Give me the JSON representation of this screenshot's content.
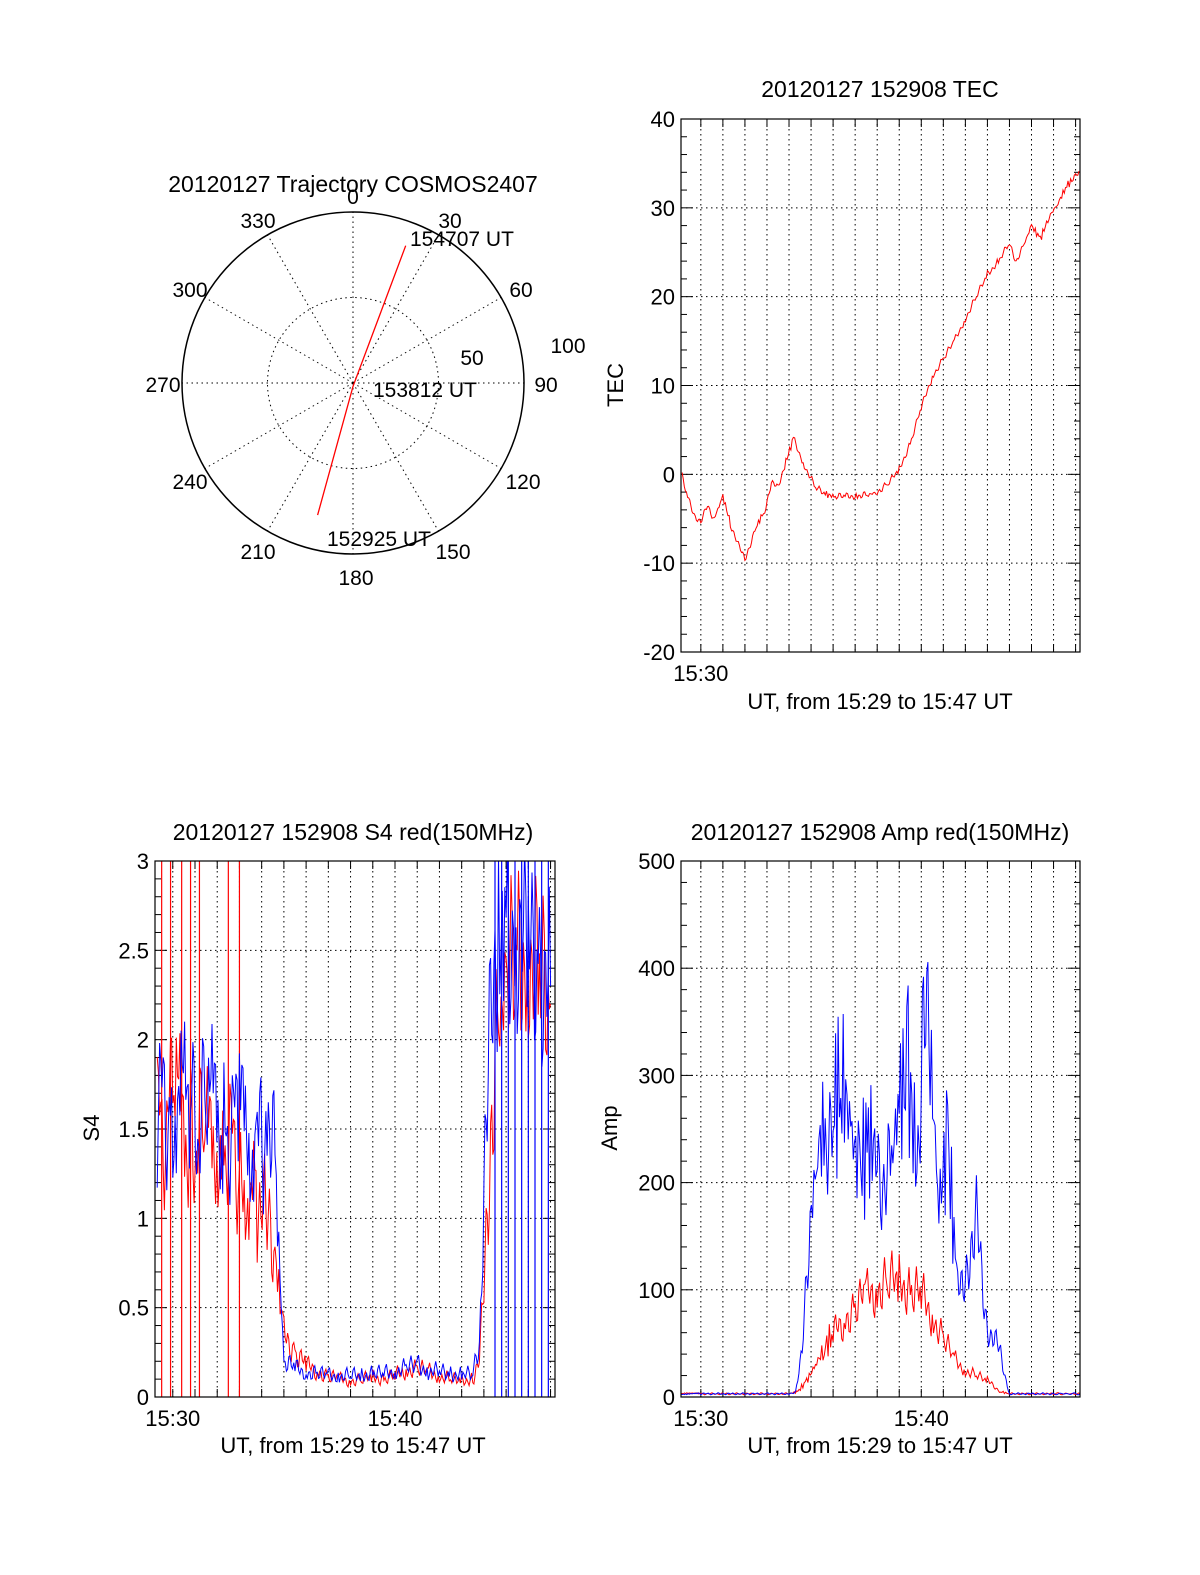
{
  "chart_data": [
    {
      "id": "trajectory",
      "type": "polar",
      "title": "20120127 Trajectory COSMOS2407",
      "angle_labels": [
        "0",
        "30",
        "60",
        "90",
        "120",
        "150",
        "180",
        "210",
        "240",
        "270",
        "300",
        "330"
      ],
      "radius_labels": [
        "50",
        "100"
      ],
      "rmax": 100,
      "grid": true,
      "series": [
        {
          "color": "#ff0000",
          "points": [
            {
              "az": 195,
              "r": 80
            },
            {
              "az": 180,
              "r": 2
            },
            {
              "az": 21,
              "r": 86
            }
          ]
        }
      ],
      "annotations": [
        {
          "text": "154707 UT",
          "az": 21,
          "r": 86
        },
        {
          "text": "153812 UT",
          "az": 180,
          "r": 2
        },
        {
          "text": "152925 UT",
          "az": 195,
          "r": 80
        }
      ]
    },
    {
      "id": "tec",
      "type": "line",
      "title": "20120127 152908 TEC",
      "xlabel": "UT, from 15:29 to 15:47 UT",
      "ylabel": "TEC",
      "x_unit": "minutes after 15:00 UT",
      "xlim": [
        29.1,
        47.2
      ],
      "ylim": [
        -20,
        40
      ],
      "yticks": [
        -20,
        -10,
        0,
        10,
        20,
        30,
        40
      ],
      "xticks": [
        {
          "value": 30,
          "label": "15:30"
        }
      ],
      "grid": true,
      "series": [
        {
          "color": "#ff0000",
          "x": [
            29.15,
            29.4,
            29.7,
            30.0,
            30.3,
            30.6,
            31.0,
            31.4,
            31.7,
            32.0,
            32.3,
            32.5,
            32.9,
            33.2,
            33.5,
            33.8,
            34.2,
            34.7,
            35.2,
            35.7,
            36.1,
            36.6,
            37.1,
            37.6,
            38.0,
            38.5,
            39.0,
            39.5,
            40.0,
            40.5,
            41.0,
            41.5,
            42.0,
            42.5,
            43.0,
            43.5,
            44.0,
            44.3,
            44.6,
            45.0,
            45.4,
            45.8,
            46.2,
            46.6,
            47.0,
            47.2
          ],
          "y": [
            0,
            -2.5,
            -4.5,
            -5.5,
            -3.5,
            -5,
            -2.5,
            -6,
            -8,
            -9.5,
            -7.5,
            -6,
            -4,
            -1,
            -1.5,
            1,
            4,
            1,
            -1.5,
            -2.3,
            -2.5,
            -2.5,
            -2.4,
            -2.3,
            -2,
            -1,
            0.5,
            3.5,
            7.5,
            11,
            13,
            15,
            17.5,
            20,
            22.5,
            24,
            26,
            24,
            25.5,
            28,
            26.5,
            29,
            30.5,
            32.5,
            33.5,
            34
          ]
        }
      ]
    },
    {
      "id": "s4",
      "type": "line",
      "title": "20120127 152908 S4 red(150MHz)",
      "xlabel": "UT, from 15:29 to 15:47 UT",
      "ylabel": "S4",
      "x_unit": "minutes after 15:00 UT",
      "xlim": [
        29.2,
        47.2
      ],
      "ylim": [
        0,
        3
      ],
      "yticks": [
        0,
        0.5,
        1,
        1.5,
        2,
        2.5,
        3
      ],
      "xticks": [
        {
          "value": 30,
          "label": "15:30"
        },
        {
          "value": 40,
          "label": "15:40"
        }
      ],
      "grid": true,
      "series": [
        {
          "color": "#ff0000",
          "x": [
            29.3,
            30.0,
            30.8,
            31.5,
            32.3,
            33.0,
            33.8,
            34.3,
            34.6,
            35.0,
            35.5,
            36.0,
            36.5,
            37.0,
            37.5,
            38.0,
            38.5,
            39.0,
            39.5,
            40.0,
            40.5,
            41.0,
            41.5,
            42.0,
            42.5,
            43.0,
            43.5,
            43.8,
            44.0,
            44.3,
            44.6,
            45.0,
            45.5,
            46.0,
            46.5,
            47.0
          ],
          "y": [
            1.5,
            1.6,
            1.5,
            1.4,
            1.5,
            1.3,
            1.1,
            1.0,
            0.8,
            0.35,
            0.25,
            0.18,
            0.14,
            0.12,
            0.1,
            0.09,
            0.1,
            0.11,
            0.1,
            0.12,
            0.15,
            0.16,
            0.14,
            0.12,
            0.1,
            0.09,
            0.1,
            0.2,
            0.6,
            1.5,
            2.0,
            2.3,
            2.4,
            2.5,
            2.3,
            2.2
          ],
          "spike_x": [
            29.5,
            29.9,
            30.4,
            30.8,
            31.2,
            32.5,
            33.0
          ],
          "spike_top": 3
        },
        {
          "color": "#0000ff",
          "x": [
            29.3,
            30.0,
            30.8,
            31.5,
            32.3,
            33.0,
            33.8,
            34.3,
            34.6,
            35.0,
            35.5,
            36.0,
            36.5,
            37.0,
            37.5,
            38.0,
            38.5,
            39.0,
            39.5,
            40.0,
            40.5,
            41.0,
            41.5,
            42.0,
            42.5,
            43.0,
            43.5,
            43.8,
            44.0,
            44.3,
            44.6,
            45.0,
            45.5,
            46.0,
            46.5,
            47.0
          ],
          "y": [
            1.6,
            1.7,
            1.55,
            1.6,
            1.55,
            1.5,
            1.5,
            1.45,
            1.3,
            0.2,
            0.16,
            0.14,
            0.13,
            0.12,
            0.12,
            0.12,
            0.12,
            0.13,
            0.13,
            0.15,
            0.16,
            0.18,
            0.15,
            0.14,
            0.13,
            0.12,
            0.13,
            0.3,
            1.2,
            2.0,
            2.5,
            2.6,
            2.6,
            2.5,
            2.4,
            2.3
          ],
          "spike_x": [
            44.5,
            44.8,
            45.1,
            45.4,
            45.7,
            46.0,
            46.3,
            46.6,
            46.9
          ],
          "spike_top": 3
        }
      ]
    },
    {
      "id": "amp",
      "type": "line",
      "title": "20120127 152908 Amp red(150MHz)",
      "xlabel": "UT, from 15:29 to 15:47 UT",
      "ylabel": "Amp",
      "x_unit": "minutes after 15:00 UT",
      "xlim": [
        29.1,
        47.2
      ],
      "ylim": [
        0,
        500
      ],
      "yticks": [
        0,
        100,
        200,
        300,
        400,
        500
      ],
      "xticks": [
        {
          "value": 30,
          "label": "15:30"
        },
        {
          "value": 40,
          "label": "15:40"
        }
      ],
      "grid": true,
      "series": [
        {
          "color": "#ff0000",
          "x": [
            29.1,
            30.0,
            31.0,
            32.0,
            33.0,
            34.0,
            34.4,
            34.8,
            35.2,
            35.6,
            36.0,
            36.5,
            37.0,
            37.5,
            38.0,
            38.5,
            39.0,
            39.5,
            40.0,
            40.5,
            41.0,
            41.5,
            42.0,
            42.5,
            43.0,
            43.3,
            43.6,
            44.0,
            45.0,
            46.0,
            47.2
          ],
          "y": [
            3,
            3,
            3,
            3,
            3,
            3,
            5,
            15,
            30,
            45,
            60,
            70,
            85,
            95,
            100,
            110,
            105,
            100,
            95,
            75,
            55,
            35,
            25,
            20,
            15,
            10,
            5,
            3,
            3,
            3,
            3
          ]
        },
        {
          "color": "#0000ff",
          "x": [
            29.1,
            30.0,
            31.0,
            32.0,
            33.0,
            34.0,
            34.3,
            34.6,
            34.9,
            35.3,
            35.7,
            36.0,
            36.4,
            36.8,
            37.2,
            37.6,
            38.0,
            38.3,
            38.6,
            39.0,
            39.4,
            39.8,
            40.1,
            40.4,
            40.8,
            41.2,
            41.6,
            41.9,
            42.2,
            42.5,
            42.8,
            43.1,
            43.4,
            43.6,
            43.8,
            44.0,
            45.0,
            46.0,
            47.2
          ],
          "y": [
            3,
            3,
            3,
            3,
            3,
            3,
            5,
            40,
            150,
            230,
            260,
            270,
            300,
            250,
            210,
            240,
            230,
            200,
            210,
            280,
            300,
            220,
            340,
            320,
            180,
            240,
            110,
            90,
            140,
            170,
            90,
            60,
            50,
            40,
            20,
            3,
            3,
            3,
            3
          ]
        }
      ]
    }
  ]
}
